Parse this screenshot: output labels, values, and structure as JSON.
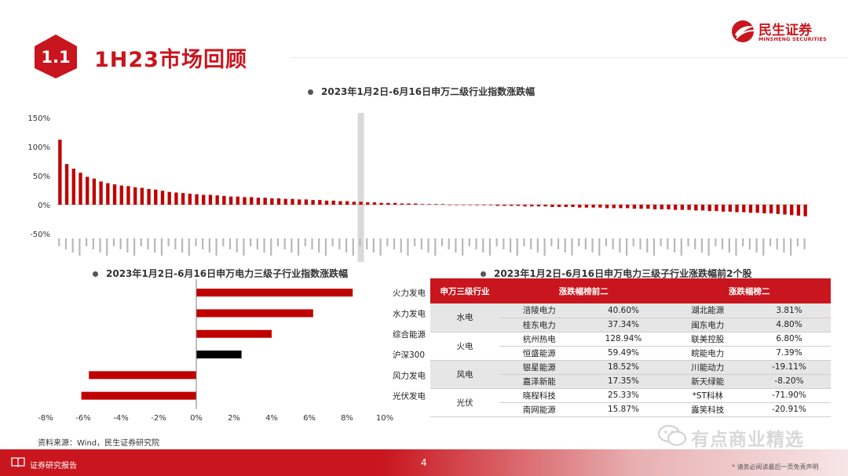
{
  "section": {
    "number": "1.1",
    "title": "1H23市场回顾"
  },
  "logo": {
    "name_cn": "民生证券",
    "name_en": "MINSHENG SECURITIES"
  },
  "colors": {
    "brand_red": "#c9151e",
    "bar_red": "#c00000",
    "highlight_black": "#000000",
    "band_gray": "#d9d9d9",
    "table_gray": "#e6e6e6"
  },
  "chart_data": [
    {
      "type": "bar",
      "title": "2023年1月2日-6月16日申万二级行业指数涨跌幅",
      "ylim": [
        -0.5,
        1.5
      ],
      "yticks": [
        "150%",
        "100%",
        "50%",
        "0%",
        "-50%"
      ],
      "ytick_values": [
        1.5,
        1.0,
        0.5,
        0.0,
        -0.5
      ],
      "highlight_index": 44,
      "category_labels_note": "x-axis category labels are illegible at this resolution",
      "values": [
        1.12,
        0.7,
        0.62,
        0.55,
        0.48,
        0.45,
        0.4,
        0.37,
        0.35,
        0.33,
        0.32,
        0.3,
        0.29,
        0.27,
        0.26,
        0.24,
        0.22,
        0.21,
        0.2,
        0.19,
        0.18,
        0.17,
        0.17,
        0.16,
        0.15,
        0.14,
        0.14,
        0.13,
        0.13,
        0.12,
        0.12,
        0.11,
        0.11,
        0.1,
        0.1,
        0.09,
        0.09,
        0.08,
        0.08,
        0.07,
        0.07,
        0.06,
        0.06,
        0.05,
        0.05,
        0.04,
        0.04,
        0.03,
        0.03,
        0.03,
        0.02,
        0.02,
        0.02,
        0.01,
        0.01,
        0.01,
        0.01,
        0.0,
        0.0,
        0.0,
        0.0,
        -0.01,
        -0.01,
        -0.01,
        -0.02,
        -0.02,
        -0.02,
        -0.02,
        -0.03,
        -0.03,
        -0.03,
        -0.03,
        -0.04,
        -0.04,
        -0.04,
        -0.04,
        -0.05,
        -0.05,
        -0.05,
        -0.05,
        -0.06,
        -0.06,
        -0.06,
        -0.06,
        -0.07,
        -0.07,
        -0.07,
        -0.08,
        -0.08,
        -0.08,
        -0.09,
        -0.09,
        -0.09,
        -0.1,
        -0.1,
        -0.11,
        -0.11,
        -0.12,
        -0.12,
        -0.13,
        -0.13,
        -0.14,
        -0.14,
        -0.15,
        -0.15,
        -0.16,
        -0.17,
        -0.18,
        -0.19,
        -0.2
      ]
    },
    {
      "type": "bar",
      "orientation": "horizontal",
      "title": "2023年1月2日-6月16日申万电力三级子行业指数涨跌幅",
      "categories": [
        "火力发电",
        "水力发电",
        "综合能源",
        "沪深300",
        "风力发电",
        "光伏发电"
      ],
      "values": [
        8.3,
        6.2,
        4.0,
        2.4,
        -5.7,
        -6.1
      ],
      "colors": [
        "#c00000",
        "#c00000",
        "#c00000",
        "#000000",
        "#c00000",
        "#c00000"
      ],
      "xlim": [
        -8,
        10
      ],
      "xticks": [
        "-8%",
        "-6%",
        "-4%",
        "-2%",
        "0%",
        "2%",
        "4%",
        "6%",
        "8%",
        "10%"
      ],
      "xtick_values": [
        -8,
        -6,
        -4,
        -2,
        0,
        2,
        4,
        6,
        8,
        10
      ]
    },
    {
      "type": "table",
      "title": "2023年1月2日-6月16日申万电力三级子行业涨跌幅前2个股",
      "headers": [
        "申万三级行业",
        "涨跌幅榜前二",
        "涨跌幅榜二"
      ],
      "rows": [
        {
          "cat": "水电",
          "items": [
            [
              "涪陵电力",
              "40.60%",
              "湖北能源",
              "3.81%"
            ],
            [
              "桂东电力",
              "37.34%",
              "闽东电力",
              "4.80%"
            ]
          ]
        },
        {
          "cat": "火电",
          "items": [
            [
              "杭州热电",
              "128.94%",
              "联美控股",
              "6.80%"
            ],
            [
              "恒盛能源",
              "59.49%",
              "皖能电力",
              "7.39%"
            ]
          ]
        },
        {
          "cat": "风电",
          "items": [
            [
              "银星能源",
              "18.52%",
              "川能动力",
              "-19.11%"
            ],
            [
              "嘉泽新能",
              "17.35%",
              "新天绿能",
              "-8.20%"
            ]
          ]
        },
        {
          "cat": "光伏",
          "items": [
            [
              "晓程科技",
              "25.33%",
              "*ST科林",
              "-71.90%"
            ],
            [
              "南网能源",
              "15.87%",
              "露笑科技",
              "-20.91%"
            ]
          ]
        }
      ]
    }
  ],
  "source": "资料来源：Wind，民生证券研究院",
  "footer": {
    "label": "证券研究报告",
    "page": "4",
    "disclaimer": "* 请务必阅读最后一页免责声明"
  },
  "watermark": "有点商业精选"
}
